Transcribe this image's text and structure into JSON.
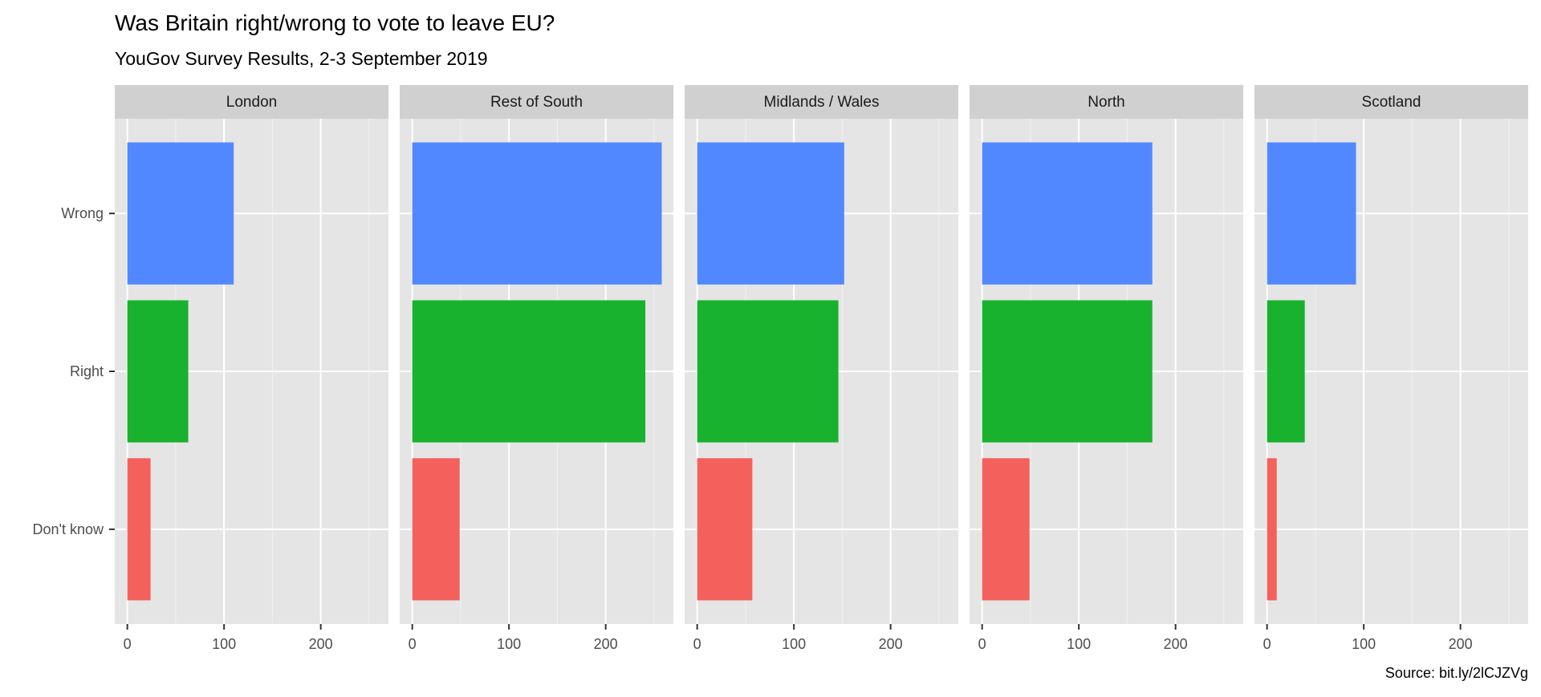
{
  "chart_data": {
    "type": "bar",
    "orientation": "horizontal",
    "title": "Was Britain right/wrong to vote to leave EU?",
    "subtitle": "YouGov Survey Results, 2-3 September 2019",
    "caption": "Source: bit.ly/2lCJZVg",
    "xlabel": "",
    "ylabel": "",
    "categories": [
      "Wrong",
      "Right",
      "Don't know"
    ],
    "colors": {
      "Wrong": "#5288FF",
      "Right": "#19B22F",
      "Don't know": "#F4605C"
    },
    "xlim": [
      0,
      270
    ],
    "x_ticks": [
      "0",
      "100",
      "200"
    ],
    "grid": true,
    "legend": "none",
    "panels": [
      {
        "name": "London",
        "values": [
          110,
          63,
          24
        ]
      },
      {
        "name": "Rest of South",
        "values": [
          258,
          241,
          49
        ]
      },
      {
        "name": "Midlands / Wales",
        "values": [
          152,
          146,
          57
        ]
      },
      {
        "name": "North",
        "values": [
          176,
          176,
          49
        ]
      },
      {
        "name": "Scotland",
        "values": [
          92,
          39,
          10
        ]
      }
    ]
  }
}
